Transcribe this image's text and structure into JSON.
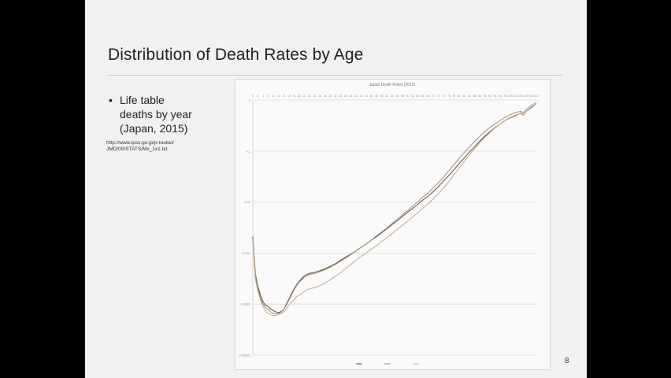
{
  "slide": {
    "title": "Distribution of Death Rates by Age",
    "bullet_lines": [
      "Life table",
      "deaths by year",
      "(Japan, 2015)"
    ],
    "source_url_lines": [
      "http://www.ipss.go.jp/p-toukei/",
      "JMD/00/STATS/Mx_1x1.txt"
    ],
    "page_number": "8"
  },
  "chart_data": {
    "type": "line",
    "title": "Japan Death Rates (2015)",
    "xlabel": "",
    "ylabel": "",
    "y_scale": "log",
    "ylim": [
      1e-05,
      1
    ],
    "y_tick_labels": [
      "1",
      "0.1",
      "0.01",
      "0.001",
      "0.0001",
      "0.00001"
    ],
    "x_age_range": [
      0,
      110
    ],
    "grid": true,
    "legend_position": "bottom",
    "legend_entries": [
      "",
      "",
      ""
    ],
    "series": [
      {
        "color": "#5a4a3e",
        "x": [
          0,
          1,
          2,
          3,
          4,
          5,
          6,
          7,
          8,
          9,
          10,
          11,
          12,
          13,
          14,
          15,
          16,
          17,
          18,
          19,
          20,
          22,
          24,
          26,
          28,
          30,
          32,
          34,
          36,
          38,
          40,
          42,
          44,
          46,
          48,
          50,
          52,
          54,
          56,
          58,
          60,
          62,
          64,
          66,
          68,
          70,
          72,
          74,
          76,
          78,
          80,
          82,
          84,
          86,
          88,
          90,
          92,
          94,
          96,
          98,
          100,
          102,
          104,
          105,
          106,
          108,
          110
        ],
        "y": [
          0.0021,
          0.00039,
          0.00022,
          0.00015,
          0.00011,
          9.5e-05,
          9e-05,
          8e-05,
          7.5e-05,
          7e-05,
          6.8e-05,
          7.2e-05,
          7.8e-05,
          0.0001,
          0.000125,
          0.00016,
          0.0002,
          0.00024,
          0.00028,
          0.00032,
          0.00036,
          0.0004,
          0.00042,
          0.00045,
          0.00049,
          0.00055,
          0.00062,
          0.00072,
          0.00083,
          0.00095,
          0.0011,
          0.0013,
          0.0015,
          0.0018,
          0.0021,
          0.0025,
          0.003,
          0.0036,
          0.0043,
          0.0052,
          0.0063,
          0.0075,
          0.009,
          0.011,
          0.013,
          0.016,
          0.02,
          0.026,
          0.033,
          0.043,
          0.056,
          0.073,
          0.095,
          0.12,
          0.155,
          0.195,
          0.24,
          0.29,
          0.34,
          0.4,
          0.45,
          0.5,
          0.55,
          0.5,
          0.6,
          0.7,
          0.85
        ]
      },
      {
        "color": "#a39178",
        "x": [
          0,
          1,
          2,
          3,
          4,
          5,
          6,
          7,
          8,
          9,
          10,
          11,
          12,
          13,
          14,
          15,
          16,
          17,
          18,
          19,
          20,
          22,
          24,
          26,
          28,
          30,
          32,
          34,
          36,
          38,
          40,
          42,
          44,
          46,
          48,
          50,
          52,
          54,
          56,
          58,
          60,
          62,
          64,
          66,
          68,
          70,
          72,
          74,
          76,
          78,
          80,
          82,
          84,
          86,
          88,
          90,
          92,
          94,
          96,
          98,
          100,
          102,
          104,
          105,
          106,
          108,
          110
        ],
        "y": [
          0.0019,
          0.00035,
          0.0002,
          0.00013,
          0.0001,
          8.5e-05,
          7.8e-05,
          7e-05,
          6.6e-05,
          6.4e-05,
          6.5e-05,
          7e-05,
          7.8e-05,
          9.5e-05,
          0.00012,
          0.00015,
          0.00019,
          0.00023,
          0.00027,
          0.0003,
          0.00034,
          0.00038,
          0.0004,
          0.00043,
          0.00047,
          0.00053,
          0.0006,
          0.00069,
          0.0008,
          0.00093,
          0.0011,
          0.0013,
          0.0015,
          0.0018,
          0.0022,
          0.0026,
          0.0031,
          0.0038,
          0.0046,
          0.0056,
          0.0068,
          0.0083,
          0.0101,
          0.0125,
          0.015,
          0.019,
          0.024,
          0.031,
          0.041,
          0.054,
          0.071,
          0.093,
          0.12,
          0.155,
          0.195,
          0.24,
          0.29,
          0.34,
          0.4,
          0.46,
          0.52,
          0.57,
          0.6,
          0.55,
          0.65,
          0.78,
          0.9
        ]
      },
      {
        "color": "#c0aa8f",
        "x": [
          0,
          1,
          2,
          3,
          4,
          5,
          6,
          7,
          8,
          9,
          10,
          11,
          12,
          13,
          14,
          15,
          16,
          17,
          18,
          19,
          20,
          22,
          24,
          26,
          28,
          30,
          32,
          34,
          36,
          38,
          40,
          42,
          44,
          46,
          48,
          50,
          52,
          54,
          56,
          58,
          60,
          62,
          64,
          66,
          68,
          70,
          72,
          74,
          76,
          78,
          80,
          82,
          84,
          86,
          88,
          90,
          92,
          94,
          96,
          98,
          100,
          102,
          104,
          105,
          106,
          108,
          110
        ],
        "y": [
          0.0017,
          0.0003,
          0.00018,
          0.00012,
          9e-05,
          7e-05,
          6.6e-05,
          6.2e-05,
          6e-05,
          6e-05,
          6.2e-05,
          6.6e-05,
          7e-05,
          8e-05,
          9.5e-05,
          0.00011,
          0.00012,
          0.00014,
          0.00015,
          0.00016,
          0.00018,
          0.0002,
          0.00021,
          0.00023,
          0.00026,
          0.0003,
          0.00035,
          0.00041,
          0.0005,
          0.0006,
          0.00072,
          0.00086,
          0.001,
          0.0012,
          0.0014,
          0.0017,
          0.002,
          0.0024,
          0.0029,
          0.0035,
          0.0042,
          0.0051,
          0.0062,
          0.0076,
          0.0093,
          0.0115,
          0.0145,
          0.019,
          0.025,
          0.034,
          0.046,
          0.062,
          0.083,
          0.11,
          0.145,
          0.185,
          0.23,
          0.285,
          0.34,
          0.4,
          0.46,
          0.51,
          0.54,
          0.5,
          0.6,
          0.72,
          0.85
        ]
      }
    ]
  }
}
